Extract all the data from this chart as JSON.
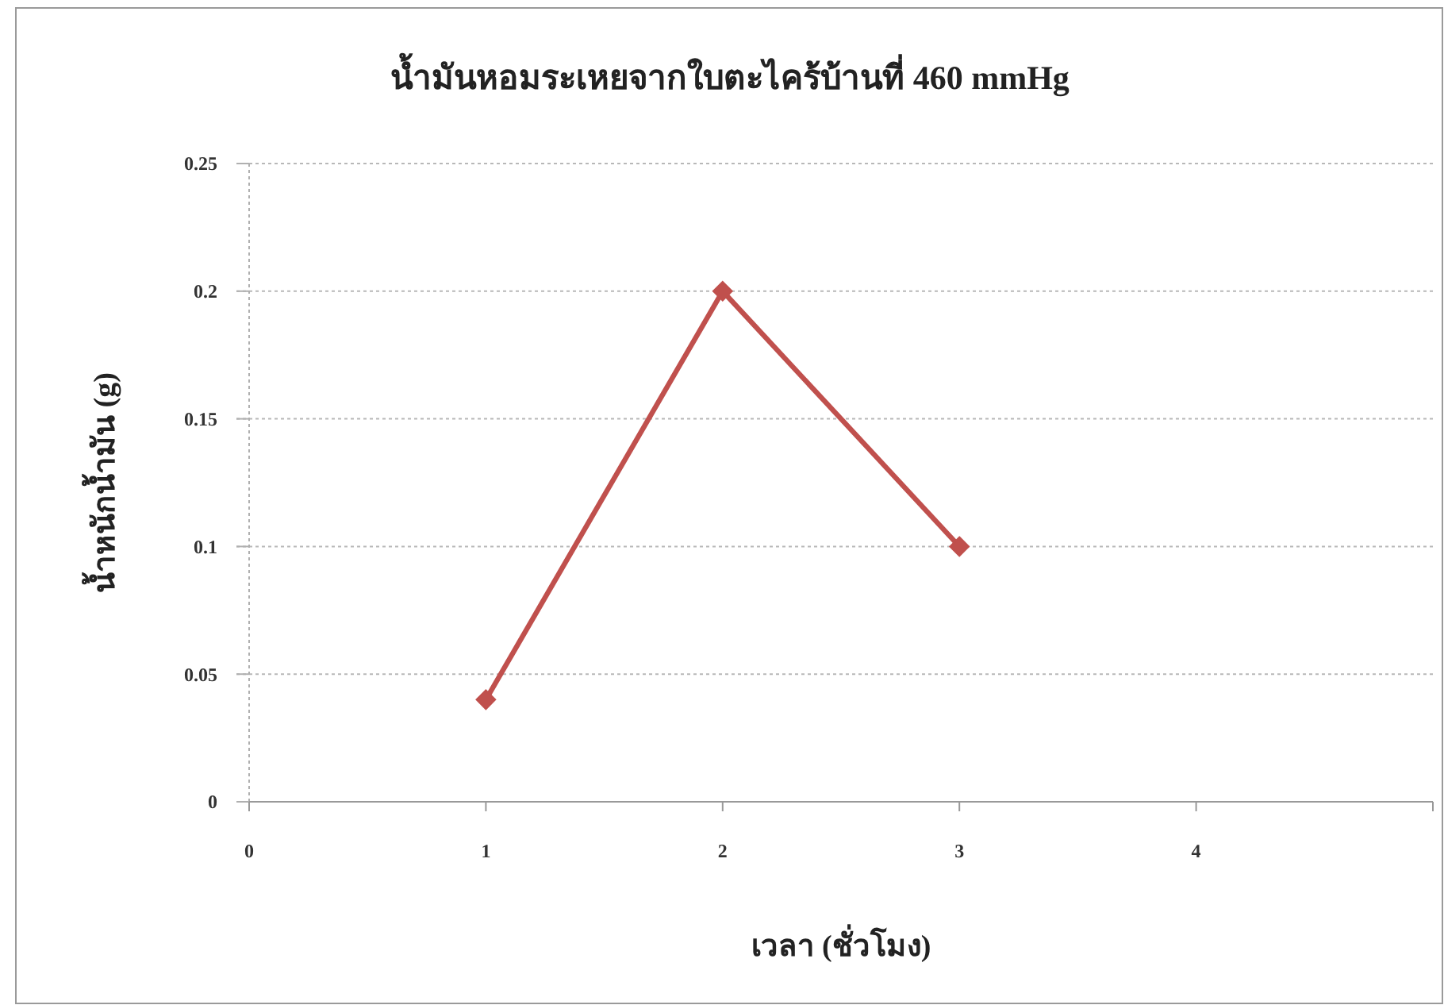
{
  "chart_data": {
    "type": "line",
    "title": "น้ำมันหอมระเหยจากใบตะไคร้บ้านที่ 460 mmHg",
    "xlabel": "เวลา (ชั่วโมง)",
    "ylabel": "น้ำหนักน้ำมัน (g)",
    "x": [
      1,
      2,
      3
    ],
    "series": [
      {
        "color": "#c0504d",
        "values": [
          0.04,
          0.2,
          0.1
        ]
      }
    ],
    "xlim": [
      0,
      5
    ],
    "xticks": [
      0,
      1,
      2,
      3,
      4,
      {
        "value": 5,
        "label": null
      }
    ],
    "ylim": [
      0,
      0.25
    ],
    "yticks": [
      0,
      0.05,
      0.1,
      0.15,
      0.2,
      0.25
    ],
    "grid": "y",
    "marker": "diamond",
    "line_style": "solid"
  }
}
